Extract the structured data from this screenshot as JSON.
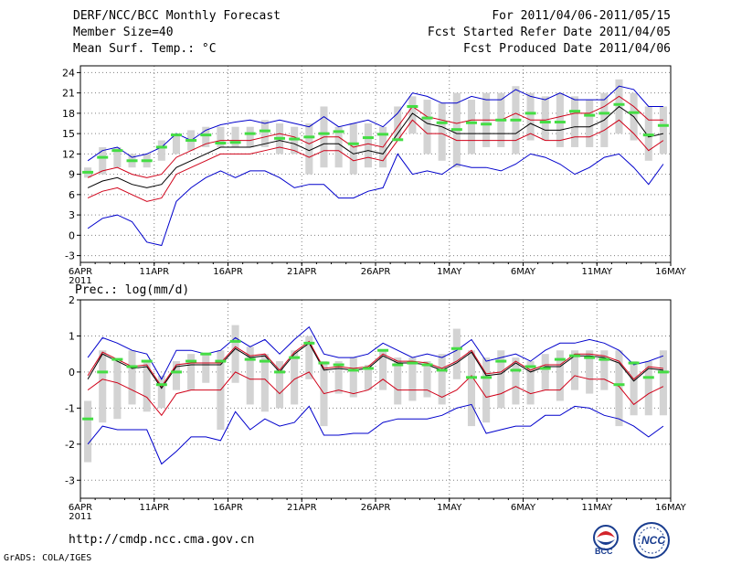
{
  "header": {
    "title": "DERF/NCC/BCC Monthly Forecast",
    "member_size": "Member Size=40",
    "variable": "Mean Surf. Temp.: °C",
    "period": "For 2011/04/06-2011/05/15",
    "started": "Fcst Started Refer Date 2011/04/05",
    "produced": "Fcst Produced Date 2011/04/06"
  },
  "footer": {
    "url": "http://cmdp.ncc.cma.gov.cn",
    "credit": "GrADS: COLA/IGES",
    "logo_bcc": "BCC",
    "logo_ncc": "NCC"
  },
  "colors": {
    "max_line": "#0000cc",
    "upper_line": "#d00018",
    "mean_line": "#000000",
    "obs_marker": "#44dd44",
    "spread_bar": "#d3d3d3",
    "grid": "#808080"
  },
  "chart_data": [
    {
      "type": "line",
      "title": "Mean Surf. Temp.: °C",
      "xlabel": "",
      "ylabel": "",
      "ylim": [
        -4,
        25
      ],
      "yticks": [
        -3,
        0,
        3,
        6,
        9,
        12,
        15,
        18,
        21,
        24
      ],
      "xticks": [
        {
          "day": 0,
          "label": "6APR"
        },
        {
          "day": 5,
          "label": "11APR"
        },
        {
          "day": 10,
          "label": "16APR"
        },
        {
          "day": 15,
          "label": "21APR"
        },
        {
          "day": 20,
          "label": "26APR"
        },
        {
          "day": 25,
          "label": "1MAY"
        },
        {
          "day": 30,
          "label": "6MAY"
        },
        {
          "day": 35,
          "label": "11MAY"
        },
        {
          "day": 40,
          "label": "16MAY"
        }
      ],
      "year_label": "2011",
      "x_days": [
        0,
        1,
        2,
        3,
        4,
        5,
        6,
        7,
        8,
        9,
        10,
        11,
        12,
        13,
        14,
        15,
        16,
        17,
        18,
        19,
        20,
        21,
        22,
        23,
        24,
        25,
        26,
        27,
        28,
        29,
        30,
        31,
        32,
        33,
        34,
        35,
        36,
        37,
        38,
        39
      ],
      "series": [
        {
          "name": "max",
          "values": [
            11,
            12.5,
            13,
            11.5,
            12,
            13,
            15,
            14,
            15.5,
            16.3,
            16.7,
            17,
            16.5,
            17,
            16.5,
            16,
            17.5,
            16,
            16.5,
            17,
            16,
            18,
            21,
            20.5,
            19.5,
            19.5,
            20.5,
            20,
            20,
            21.5,
            20.5,
            20,
            21,
            20,
            20,
            20,
            22,
            21.5,
            19,
            19
          ]
        },
        {
          "name": "upper",
          "values": [
            8.5,
            9.5,
            10,
            9,
            8.5,
            9,
            11.5,
            12.5,
            13.5,
            14,
            14,
            14,
            14.5,
            15,
            14.5,
            13.5,
            14.5,
            14.5,
            13,
            13.5,
            13,
            16,
            19,
            17.5,
            17,
            16.5,
            17,
            17,
            17,
            18,
            17,
            17,
            17.5,
            18,
            18,
            19,
            20.5,
            19,
            17,
            17
          ]
        },
        {
          "name": "mean",
          "values": [
            7,
            8,
            8.5,
            7.5,
            7,
            7.5,
            10,
            11,
            12,
            13,
            13,
            13,
            13.5,
            14,
            13.5,
            12.5,
            13.5,
            13.5,
            12,
            12.5,
            12,
            15,
            18,
            16.5,
            16,
            15,
            15,
            15,
            15,
            15,
            16.5,
            15.5,
            15.5,
            16,
            16,
            17,
            19,
            17.5,
            14.5,
            15
          ]
        },
        {
          "name": "lower",
          "values": [
            5.5,
            6.5,
            7,
            6,
            5,
            5.5,
            9,
            10,
            11,
            12,
            12,
            12,
            12.5,
            13,
            12.5,
            11.5,
            12.5,
            12.5,
            11,
            11.5,
            11,
            14,
            17,
            15,
            15,
            14,
            14,
            14,
            14,
            14,
            15,
            14,
            14,
            14.5,
            14.5,
            15.5,
            17,
            15,
            12.5,
            14
          ]
        },
        {
          "name": "min",
          "values": [
            1,
            2.5,
            3,
            2,
            -1,
            -1.5,
            5,
            7,
            8.5,
            9.5,
            8.5,
            9.5,
            9.5,
            8.5,
            7,
            7.5,
            7.5,
            5.5,
            5.5,
            6.5,
            7,
            12,
            9,
            9.5,
            9,
            10.5,
            10,
            10,
            9.5,
            10.5,
            12,
            11.5,
            10.5,
            9,
            10,
            11.5,
            12,
            10,
            7.5,
            10.5
          ]
        },
        {
          "name": "spread_top",
          "values": [
            10,
            13,
            13,
            12,
            12,
            14,
            15,
            15.5,
            16,
            16,
            16,
            16,
            17,
            16.5,
            16,
            16.5,
            19,
            16,
            16.5,
            16.5,
            16,
            19,
            20.5,
            20,
            19.5,
            21,
            20,
            21,
            21,
            22,
            21,
            20.5,
            21,
            20.5,
            20,
            21,
            23,
            21,
            19,
            19
          ]
        },
        {
          "name": "spread_bottom",
          "values": [
            8.5,
            9,
            10,
            10,
            10,
            11,
            12,
            12.5,
            13,
            13,
            13,
            13,
            13,
            12,
            12,
            9,
            10,
            10,
            9,
            10,
            10,
            14,
            15,
            12,
            11,
            10,
            12,
            13,
            13,
            12,
            14,
            14,
            13,
            13,
            13,
            13,
            15,
            14,
            11,
            12
          ]
        },
        {
          "name": "observed",
          "values": [
            9.3,
            11.5,
            12.5,
            11,
            11,
            13,
            14.8,
            14,
            14.8,
            13.6,
            13.7,
            15,
            15.4,
            14.3,
            14.2,
            14.5,
            15,
            15.3,
            13.5,
            14.4,
            14.9,
            14.1,
            19,
            17.3,
            16.6,
            15.6,
            16.6,
            16.4,
            17,
            17,
            18,
            16.7,
            16.7,
            18.3,
            17.7,
            18,
            19.3,
            18.1,
            14.8,
            16.2
          ]
        }
      ]
    },
    {
      "type": "line",
      "title": "Prec.: log(mm/d)",
      "xlabel": "",
      "ylabel": "",
      "ylim": [
        -3.5,
        2
      ],
      "yticks": [
        -3,
        -2,
        -1,
        0,
        1,
        2
      ],
      "xticks": [
        {
          "day": 0,
          "label": "6APR"
        },
        {
          "day": 5,
          "label": "11APR"
        },
        {
          "day": 10,
          "label": "16APR"
        },
        {
          "day": 15,
          "label": "21APR"
        },
        {
          "day": 20,
          "label": "26APR"
        },
        {
          "day": 25,
          "label": "1MAY"
        },
        {
          "day": 30,
          "label": "6MAY"
        },
        {
          "day": 35,
          "label": "11MAY"
        },
        {
          "day": 40,
          "label": "16MAY"
        }
      ],
      "year_label": "2011",
      "x_days": [
        0,
        1,
        2,
        3,
        4,
        5,
        6,
        7,
        8,
        9,
        10,
        11,
        12,
        13,
        14,
        15,
        16,
        17,
        18,
        19,
        20,
        21,
        22,
        23,
        24,
        25,
        26,
        27,
        28,
        29,
        30,
        31,
        32,
        33,
        34,
        35,
        36,
        37,
        38,
        39
      ],
      "series": [
        {
          "name": "max",
          "values": [
            0.4,
            0.95,
            0.8,
            0.6,
            0.5,
            -0.2,
            0.6,
            0.6,
            0.5,
            0.6,
            0.95,
            0.7,
            0.9,
            0.5,
            0.9,
            1.25,
            0.5,
            0.4,
            0.4,
            0.5,
            0.8,
            0.6,
            0.4,
            0.5,
            0.4,
            0.6,
            0.9,
            0.3,
            0.4,
            0.5,
            0.3,
            0.6,
            0.8,
            0.8,
            0.9,
            0.8,
            0.6,
            0.2,
            0.3,
            0.45
          ]
        },
        {
          "name": "upper",
          "values": [
            -0.1,
            0.55,
            0.35,
            0.15,
            0.2,
            -0.4,
            0.2,
            0.25,
            0.25,
            0.25,
            0.7,
            0.45,
            0.5,
            0.05,
            0.55,
            0.85,
            0.1,
            0.15,
            0.1,
            0.15,
            0.5,
            0.3,
            0.3,
            0.25,
            0.1,
            0.3,
            0.6,
            -0.05,
            0,
            0.3,
            0.05,
            0.2,
            0.2,
            0.5,
            0.5,
            0.45,
            0.3,
            -0.2,
            0.15,
            0.1
          ]
        },
        {
          "name": "mean",
          "values": [
            -0.2,
            0.5,
            0.3,
            0.1,
            0.15,
            -0.45,
            0.15,
            0.2,
            0.2,
            0.2,
            0.65,
            0.4,
            0.45,
            0,
            0.5,
            0.8,
            0.05,
            0.1,
            0.05,
            0.1,
            0.45,
            0.25,
            0.25,
            0.2,
            0.05,
            0.25,
            0.55,
            -0.1,
            -0.05,
            0.25,
            0,
            0.15,
            0.15,
            0.45,
            0.45,
            0.4,
            0.25,
            -0.25,
            0.1,
            0.05
          ]
        },
        {
          "name": "lower",
          "values": [
            -0.5,
            -0.2,
            -0.3,
            -0.5,
            -0.7,
            -1.2,
            -0.6,
            -0.5,
            -0.5,
            -0.5,
            0,
            -0.2,
            -0.2,
            -0.6,
            -0.2,
            0,
            -0.6,
            -0.5,
            -0.6,
            -0.5,
            -0.2,
            -0.5,
            -0.5,
            -0.5,
            -0.7,
            -0.5,
            -0.1,
            -0.7,
            -0.6,
            -0.4,
            -0.6,
            -0.5,
            -0.5,
            -0.1,
            -0.2,
            -0.2,
            -0.4,
            -0.9,
            -0.6,
            -0.4
          ]
        },
        {
          "name": "min",
          "values": [
            -2,
            -1.5,
            -1.6,
            -1.6,
            -1.6,
            -2.55,
            -2.2,
            -1.8,
            -1.8,
            -1.9,
            -1.1,
            -1.6,
            -1.3,
            -1.5,
            -1.4,
            -0.95,
            -1.75,
            -1.75,
            -1.7,
            -1.7,
            -1.4,
            -1.3,
            -1.3,
            -1.3,
            -1.2,
            -1,
            -0.9,
            -1.7,
            -1.6,
            -1.5,
            -1.5,
            -1.2,
            -1.2,
            -0.95,
            -1.0,
            -1.2,
            -1.3,
            -1.5,
            -1.8,
            -1.5
          ]
        },
        {
          "name": "spread_top",
          "values": [
            -0.8,
            0.6,
            0.3,
            0.6,
            0.3,
            -0.1,
            0.3,
            0.5,
            0.5,
            0.6,
            1.3,
            0.7,
            0.5,
            0.3,
            0.6,
            1,
            0.3,
            0.3,
            0.4,
            0.2,
            0.6,
            0.4,
            0.4,
            0.3,
            0.5,
            1.2,
            0.6,
            0.4,
            0.6,
            0.4,
            0.3,
            0.5,
            0.6,
            0.6,
            0.6,
            0.6,
            0.6,
            0.3,
            0.3,
            0.6
          ]
        },
        {
          "name": "spread_bottom",
          "values": [
            -2.5,
            -1.4,
            -1.3,
            -0.9,
            -1.1,
            -1,
            -0.5,
            -0.5,
            -0.3,
            -1.6,
            -0.3,
            -0.9,
            -1.1,
            -1,
            -0.9,
            -0.2,
            -1.5,
            -0.6,
            -0.7,
            -0.5,
            -0.5,
            -0.9,
            -0.8,
            -0.7,
            -0.9,
            -0.2,
            -1.5,
            -1.4,
            -1,
            -0.9,
            -0.9,
            -0.5,
            -0.8,
            -0.5,
            -0.6,
            -0.5,
            -1.5,
            -1.2,
            -1.2,
            -1.2
          ]
        },
        {
          "name": "observed",
          "values": [
            -1.3,
            0,
            0.35,
            0.15,
            0.3,
            -0.35,
            0,
            0.3,
            0.5,
            0.3,
            0.85,
            0.35,
            0.3,
            0,
            0.4,
            0.8,
            0.25,
            0.2,
            0.05,
            0.1,
            0.6,
            0.2,
            0.25,
            0.2,
            0.05,
            0.65,
            -0.15,
            -0.15,
            0.3,
            0.05,
            0.15,
            0.1,
            0.35,
            0.45,
            0.4,
            0.35,
            -0.35,
            0.25,
            -0.15,
            0
          ]
        }
      ]
    }
  ]
}
